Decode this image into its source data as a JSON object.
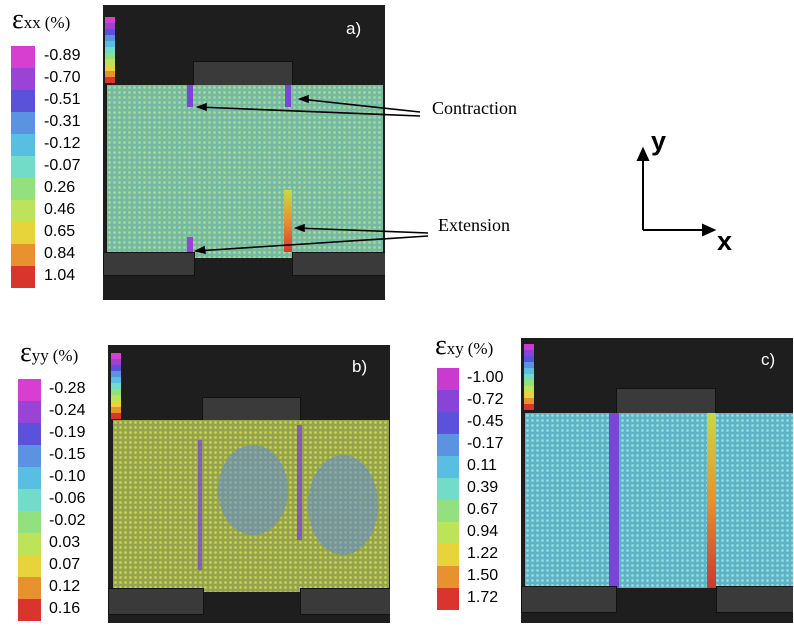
{
  "colors": {
    "scale": [
      "#d63fd0",
      "#9a44d6",
      "#5b52d9",
      "#5b93e0",
      "#58bfe3",
      "#73dcc8",
      "#93e07e",
      "#bde35a",
      "#e7d43a",
      "#e8912f",
      "#d9352c"
    ],
    "scale_yy": [
      "#d63fd0",
      "#9a44d6",
      "#5b52d9",
      "#5b93e0",
      "#58bfe3",
      "#73dcc8",
      "#93e07e",
      "#bde35a",
      "#e7d43a",
      "#e8912f",
      "#d9352c"
    ],
    "scale_xy": [
      "#c93bcf",
      "#8844d6",
      "#5b52d9",
      "#5b93e0",
      "#58bfe3",
      "#73dcc8",
      "#93e07e",
      "#bde35a",
      "#e7d43a",
      "#e8912f",
      "#d9352c"
    ]
  },
  "panels": {
    "a": {
      "label": "a)",
      "legend_symbol": "ε",
      "legend_sub": "xx",
      "legend_unit": "(%)",
      "legend_values": [
        "-0.89",
        "-0.70",
        "-0.51",
        "-0.31",
        "-0.12",
        "-0.07",
        "0.26",
        "0.46",
        "0.65",
        "0.84",
        "1.04"
      ]
    },
    "b": {
      "label": "b)",
      "legend_symbol": "ε",
      "legend_sub": "yy",
      "legend_unit": "(%)",
      "legend_values": [
        "-0.28",
        "-0.24",
        "-0.19",
        "-0.15",
        "-0.10",
        "-0.06",
        "-0.02",
        "0.03",
        "0.07",
        "0.12",
        "0.16"
      ]
    },
    "c": {
      "label": "c)",
      "legend_symbol": "ε",
      "legend_sub": "xy",
      "legend_unit": "(%)",
      "legend_values": [
        "-1.00",
        "-0.72",
        "-0.45",
        "-0.17",
        "0.11",
        "0.39",
        "0.67",
        "0.94",
        "1.22",
        "1.50",
        "1.72"
      ]
    }
  },
  "annotations": {
    "contraction": "Contraction",
    "extension": "Extension"
  },
  "axes": {
    "y": "y",
    "x": "x"
  }
}
